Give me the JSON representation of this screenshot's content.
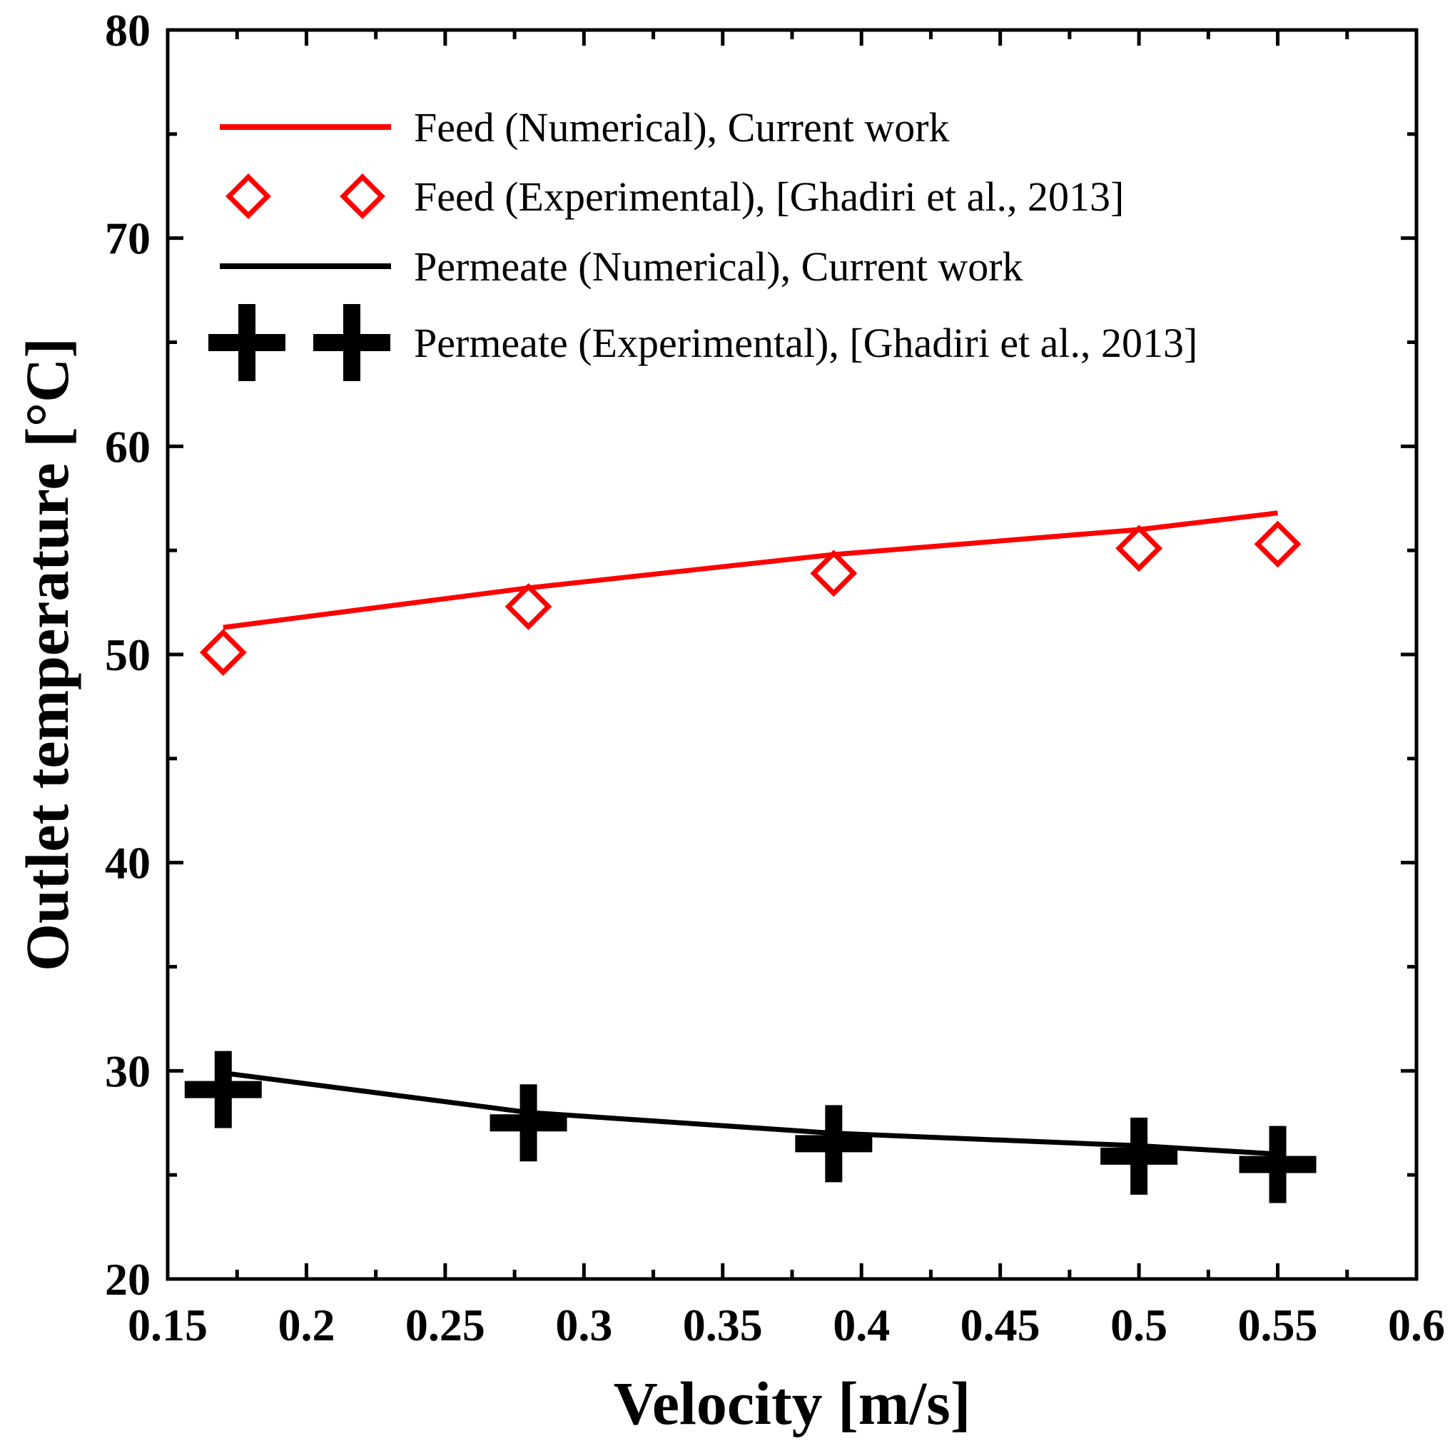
{
  "chart_data": {
    "type": "line",
    "title": "",
    "xlabel": "Velocity [m/s]",
    "ylabel": "Outlet temperature [°C]",
    "xlim": [
      0.15,
      0.6
    ],
    "ylim": [
      20,
      80
    ],
    "xticks": [
      0.15,
      0.2,
      0.25,
      0.3,
      0.35,
      0.4,
      0.45,
      0.5,
      0.55,
      0.6
    ],
    "xtick_labels": [
      "0.15",
      "0.2",
      "0.25",
      "0.3",
      "0.35",
      "0.4",
      "0.45",
      "0.5",
      "0.55",
      "0.6"
    ],
    "yticks": [
      20,
      30,
      40,
      50,
      60,
      70,
      80
    ],
    "ytick_labels": [
      "20",
      "30",
      "40",
      "50",
      "60",
      "70",
      "80"
    ],
    "legend_position": "top-left",
    "series": [
      {
        "name": "Feed (Numerical), Current work",
        "kind": "line",
        "color": "#ff0000",
        "x": [
          0.17,
          0.28,
          0.39,
          0.5,
          0.55
        ],
        "y": [
          51.3,
          53.2,
          54.8,
          56.0,
          56.8
        ]
      },
      {
        "name": "Feed (Experimental), [Ghadiri et al., 2013]",
        "kind": "marker",
        "marker": "diamond-open",
        "color": "#ff0000",
        "x": [
          0.17,
          0.28,
          0.39,
          0.5,
          0.55
        ],
        "y": [
          50.1,
          52.3,
          53.9,
          55.1,
          55.3
        ]
      },
      {
        "name": "Permeate (Numerical), Current work",
        "kind": "line",
        "color": "#000000",
        "x": [
          0.17,
          0.28,
          0.39,
          0.5,
          0.55
        ],
        "y": [
          29.9,
          28.0,
          27.0,
          26.4,
          26.0
        ]
      },
      {
        "name": "Permeate (Experimental), [Ghadiri et al., 2013]",
        "kind": "marker",
        "marker": "plus",
        "color": "#000000",
        "x": [
          0.17,
          0.28,
          0.39,
          0.5,
          0.55
        ],
        "y": [
          29.1,
          27.5,
          26.5,
          25.9,
          25.5
        ]
      }
    ]
  }
}
